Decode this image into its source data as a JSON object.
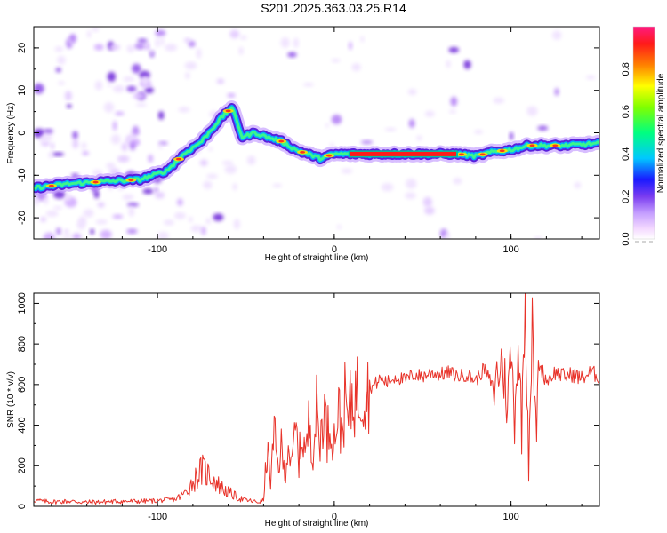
{
  "title": "S201.2025.363.03.25.R14",
  "colors": {
    "snr_line": "#e8332a",
    "axis": "#000000",
    "frame": "#000000"
  },
  "chart_data": [
    {
      "type": "heatmap",
      "name": "spectrogram",
      "xlabel": "Height of straight line (km)",
      "ylabel": "Frequency (Hz)",
      "xlim": [
        -170,
        150
      ],
      "ylim": [
        -25,
        25
      ],
      "xticks": [
        -100,
        0,
        100
      ],
      "yticks": [
        -20,
        -10,
        0,
        10,
        20
      ],
      "ridge": {
        "x": [
          -170,
          -150,
          -130,
          -110,
          -95,
          -85,
          -75,
          -65,
          -58,
          -52,
          -45,
          -38,
          -30,
          -22,
          -15,
          -8,
          0,
          10,
          30,
          50,
          70,
          80,
          90,
          100,
          110,
          120,
          130,
          150
        ],
        "freq": [
          -13,
          -12,
          -11.5,
          -11,
          -9,
          -5,
          -2,
          3,
          6,
          -1,
          0,
          -1,
          -2,
          -4,
          -5,
          -6,
          -5,
          -5,
          -5,
          -5,
          -5,
          -5.5,
          -4.5,
          -4,
          -3,
          -3,
          -3,
          -2.5
        ]
      },
      "colorbar": {
        "label": "Normalized spectral amplitude",
        "range": [
          0.0,
          1.0
        ],
        "ticks": [
          0.0,
          0.2,
          0.4,
          0.6,
          0.8
        ],
        "tick_labels": [
          "0.0",
          "0.2",
          "0.4",
          "0.6",
          "0.8"
        ]
      }
    },
    {
      "type": "line",
      "name": "snr",
      "xlabel": "Height of straight line (km)",
      "ylabel": "SNR (10 * v/v)",
      "xlim": [
        -170,
        150
      ],
      "ylim": [
        0,
        1050
      ],
      "xticks": [
        -100,
        0,
        100
      ],
      "yticks": [
        0,
        200,
        400,
        600,
        800,
        1000
      ],
      "series": [
        {
          "name": "SNR",
          "x": [
            -170,
            -160,
            -150,
            -140,
            -130,
            -120,
            -110,
            -100,
            -90,
            -85,
            -80,
            -75,
            -70,
            -66,
            -62,
            -58,
            -54,
            -50,
            -46,
            -43,
            -40,
            -38,
            -36,
            -34,
            -32,
            -30,
            -28,
            -26,
            -24,
            -22,
            -20,
            -18,
            -16,
            -14,
            -12,
            -10,
            -8,
            -6,
            -4,
            -2,
            0,
            2,
            4,
            6,
            8,
            10,
            14,
            18,
            22,
            26,
            30,
            35,
            40,
            45,
            50,
            55,
            60,
            65,
            70,
            75,
            80,
            85,
            90,
            95,
            98,
            100,
            102,
            104,
            106,
            108,
            110,
            112,
            114,
            116,
            120,
            125,
            130,
            135,
            140,
            145,
            150
          ],
          "values": [
            30,
            22,
            25,
            20,
            22,
            25,
            25,
            28,
            35,
            60,
            120,
            180,
            150,
            110,
            80,
            60,
            40,
            30,
            25,
            20,
            30,
            280,
            120,
            350,
            200,
            280,
            150,
            320,
            180,
            390,
            230,
            360,
            250,
            440,
            280,
            470,
            300,
            520,
            350,
            420,
            330,
            480,
            380,
            510,
            420,
            540,
            560,
            600,
            590,
            630,
            610,
            640,
            620,
            650,
            640,
            660,
            650,
            660,
            640,
            650,
            620,
            680,
            580,
            720,
            500,
            760,
            450,
            800,
            400,
            1030,
            250,
            900,
            350,
            700,
            620,
            660,
            640,
            650,
            630,
            660,
            640
          ]
        }
      ]
    }
  ]
}
